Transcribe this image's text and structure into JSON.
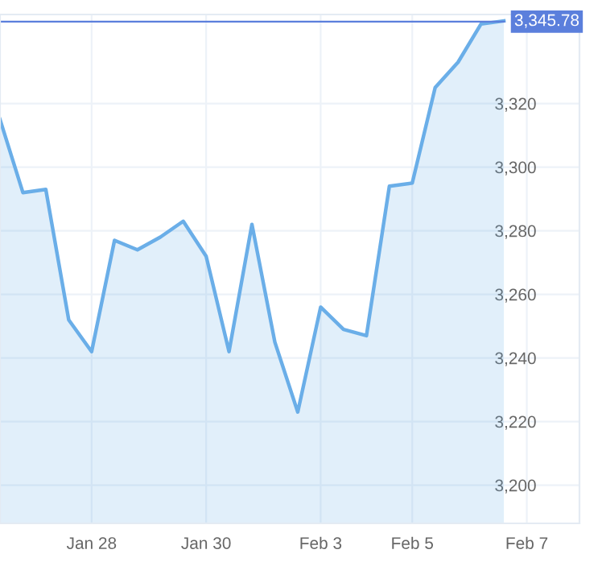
{
  "chart_data": {
    "type": "area",
    "categories": [
      null,
      null,
      null,
      null,
      "Jan 28",
      null,
      null,
      null,
      null,
      "Jan 30",
      null,
      null,
      null,
      null,
      "Feb 3",
      null,
      null,
      null,
      "Feb 5",
      null,
      null,
      null,
      null,
      "Feb 7"
    ],
    "series": [
      {
        "color": "#6aaee8",
        "values": [
          3315,
          3292,
          3293,
          3252,
          3242,
          3277,
          3274,
          3278,
          3283,
          3272,
          3242,
          3282,
          3245,
          3223,
          3256,
          3249,
          3247,
          3294,
          3295,
          3325,
          3333,
          3345,
          3346,
          null
        ]
      }
    ],
    "ylim": [
      3188,
      3348
    ],
    "yticks": [
      {
        "value": 3200,
        "label": "3,200"
      },
      {
        "value": 3220,
        "label": "3,220"
      },
      {
        "value": 3240,
        "label": "3,240"
      },
      {
        "value": 3260,
        "label": "3,260"
      },
      {
        "value": 3280,
        "label": "3,280"
      },
      {
        "value": 3300,
        "label": "3,300"
      },
      {
        "value": 3320,
        "label": "3,320"
      }
    ],
    "ref_lines": [
      {
        "axis": "y",
        "value": 3345.78,
        "label": "3,345.78",
        "color": "#5b7fdc"
      }
    ],
    "grid": true,
    "legend": false
  }
}
